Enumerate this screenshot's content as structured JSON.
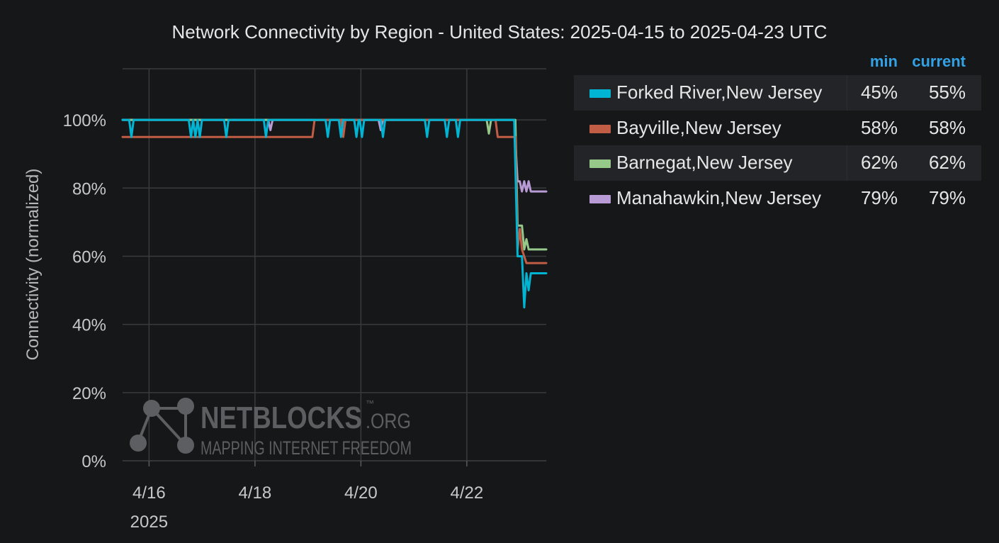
{
  "chart_data": {
    "type": "line",
    "title": "Network Connectivity by Region - United States: 2025-04-15 to 2025-04-23 UTC",
    "xlabel": "",
    "ylabel": "Connectivity (normalized)",
    "ylim": [
      0,
      115
    ],
    "x_range": [
      "2025-04-15T12:00",
      "2025-04-23T12:00"
    ],
    "x_ticks": [
      {
        "x": "2025-04-16",
        "label": "4/16"
      },
      {
        "x": "2025-04-18",
        "label": "4/18"
      },
      {
        "x": "2025-04-20",
        "label": "4/20"
      },
      {
        "x": "2025-04-22",
        "label": "4/22"
      }
    ],
    "x_tick_sublabel": "2025",
    "y_ticks": [
      0,
      20,
      40,
      60,
      80,
      100
    ],
    "y_tick_labels": [
      "0%",
      "20%",
      "40%",
      "60%",
      "80%",
      "100%"
    ],
    "grid": true,
    "legend_position": "right",
    "legend_columns": [
      "min",
      "current"
    ],
    "series": [
      {
        "name": "Forked River,New Jersey",
        "color": "#00b5d4",
        "min": "45%",
        "current": "55%",
        "points": [
          [
            "2025-04-15T12:00",
            100
          ],
          [
            "2025-04-15T15:00",
            100
          ],
          [
            "2025-04-15T16:00",
            95
          ],
          [
            "2025-04-15T17:00",
            100
          ],
          [
            "2025-04-16T18:00",
            100
          ],
          [
            "2025-04-16T19:00",
            95
          ],
          [
            "2025-04-16T20:00",
            100
          ],
          [
            "2025-04-16T21:00",
            95
          ],
          [
            "2025-04-16T22:00",
            100
          ],
          [
            "2025-04-16T23:00",
            95
          ],
          [
            "2025-04-17T00:00",
            100
          ],
          [
            "2025-04-17T10:00",
            100
          ],
          [
            "2025-04-17T11:00",
            95
          ],
          [
            "2025-04-17T12:00",
            100
          ],
          [
            "2025-04-18T04:00",
            100
          ],
          [
            "2025-04-18T05:00",
            95
          ],
          [
            "2025-04-18T06:00",
            100
          ],
          [
            "2025-04-19T08:00",
            100
          ],
          [
            "2025-04-19T09:00",
            95
          ],
          [
            "2025-04-19T10:00",
            100
          ],
          [
            "2025-04-19T14:00",
            100
          ],
          [
            "2025-04-19T15:00",
            95
          ],
          [
            "2025-04-19T16:00",
            100
          ],
          [
            "2025-04-19T21:00",
            100
          ],
          [
            "2025-04-19T22:00",
            95
          ],
          [
            "2025-04-19T23:00",
            100
          ],
          [
            "2025-04-19T23:30",
            100
          ],
          [
            "2025-04-20T00:30",
            95
          ],
          [
            "2025-04-20T01:30",
            100
          ],
          [
            "2025-04-20T09:00",
            100
          ],
          [
            "2025-04-20T10:00",
            95
          ],
          [
            "2025-04-20T11:00",
            100
          ],
          [
            "2025-04-21T05:00",
            100
          ],
          [
            "2025-04-21T06:00",
            95
          ],
          [
            "2025-04-21T07:00",
            100
          ],
          [
            "2025-04-21T14:00",
            100
          ],
          [
            "2025-04-21T15:00",
            95
          ],
          [
            "2025-04-21T16:00",
            100
          ],
          [
            "2025-04-21T19:00",
            100
          ],
          [
            "2025-04-21T20:00",
            95
          ],
          [
            "2025-04-21T21:00",
            100
          ],
          [
            "2025-04-22T21:30",
            100
          ],
          [
            "2025-04-22T23:00",
            60
          ],
          [
            "2025-04-23T00:00",
            60
          ],
          [
            "2025-04-23T01:00",
            60
          ],
          [
            "2025-04-23T02:00",
            45
          ],
          [
            "2025-04-23T03:00",
            55
          ],
          [
            "2025-04-23T04:00",
            50
          ],
          [
            "2025-04-23T05:00",
            55
          ],
          [
            "2025-04-23T12:00",
            55
          ]
        ]
      },
      {
        "name": "Bayville,New Jersey",
        "color": "#c15c45",
        "min": "58%",
        "current": "58%",
        "points": [
          [
            "2025-04-15T12:00",
            95
          ],
          [
            "2025-04-19T02:00",
            95
          ],
          [
            "2025-04-19T03:00",
            100
          ],
          [
            "2025-04-19T15:00",
            100
          ],
          [
            "2025-04-19T16:00",
            95
          ],
          [
            "2025-04-19T17:00",
            100
          ],
          [
            "2025-04-22T13:00",
            100
          ],
          [
            "2025-04-22T14:00",
            95
          ],
          [
            "2025-04-22T22:00",
            95
          ],
          [
            "2025-04-22T23:00",
            62
          ],
          [
            "2025-04-23T00:00",
            68
          ],
          [
            "2025-04-23T01:00",
            62
          ],
          [
            "2025-04-23T03:00",
            58
          ],
          [
            "2025-04-23T12:00",
            58
          ]
        ]
      },
      {
        "name": "Barnegat,New Jersey",
        "color": "#96c88a",
        "min": "62%",
        "current": "62%",
        "points": [
          [
            "2025-04-15T12:00",
            100
          ],
          [
            "2025-04-22T09:00",
            100
          ],
          [
            "2025-04-22T10:00",
            96
          ],
          [
            "2025-04-22T11:00",
            100
          ],
          [
            "2025-04-22T22:00",
            100
          ],
          [
            "2025-04-22T23:00",
            69
          ],
          [
            "2025-04-23T01:00",
            69
          ],
          [
            "2025-04-23T02:00",
            62
          ],
          [
            "2025-04-23T03:00",
            65
          ],
          [
            "2025-04-23T04:00",
            62
          ],
          [
            "2025-04-23T12:00",
            62
          ]
        ]
      },
      {
        "name": "Manahawkin,New Jersey",
        "color": "#b89ad4",
        "min": "79%",
        "current": "79%",
        "points": [
          [
            "2025-04-15T12:00",
            100
          ],
          [
            "2025-04-18T06:00",
            100
          ],
          [
            "2025-04-18T07:00",
            97
          ],
          [
            "2025-04-18T08:00",
            100
          ],
          [
            "2025-04-20T08:00",
            100
          ],
          [
            "2025-04-20T09:00",
            97
          ],
          [
            "2025-04-20T10:00",
            100
          ],
          [
            "2025-04-22T21:30",
            100
          ],
          [
            "2025-04-22T23:00",
            82
          ],
          [
            "2025-04-23T00:00",
            82
          ],
          [
            "2025-04-23T01:00",
            79
          ],
          [
            "2025-04-23T02:00",
            82
          ],
          [
            "2025-04-23T03:00",
            79
          ],
          [
            "2025-04-23T04:00",
            82
          ],
          [
            "2025-04-23T05:00",
            79
          ],
          [
            "2025-04-23T12:00",
            79
          ]
        ]
      }
    ]
  },
  "watermark": {
    "brand": "NETBLOCKS",
    "suffix": ".ORG",
    "tm": "™",
    "tagline": "MAPPING INTERNET FREEDOM"
  }
}
